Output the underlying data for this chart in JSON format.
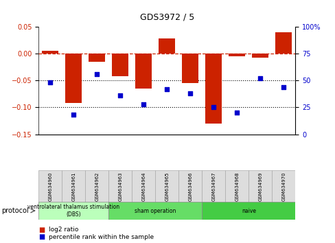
{
  "title": "GDS3972 / 5",
  "samples": [
    "GSM634960",
    "GSM634961",
    "GSM634962",
    "GSM634963",
    "GSM634964",
    "GSM634965",
    "GSM634966",
    "GSM634967",
    "GSM634968",
    "GSM634969",
    "GSM634970"
  ],
  "log2_ratio": [
    0.005,
    -0.092,
    -0.015,
    -0.042,
    -0.065,
    0.028,
    -0.055,
    -0.13,
    -0.005,
    -0.008,
    0.04
  ],
  "percentile_rank": [
    48,
    18,
    56,
    36,
    28,
    42,
    38,
    25,
    20,
    52,
    44
  ],
  "groups": [
    {
      "label": "ventrolateral thalamus stimulation\n(DBS)",
      "start": 0,
      "end": 2,
      "color": "#bbffbb"
    },
    {
      "label": "sham operation",
      "start": 3,
      "end": 6,
      "color": "#66dd66"
    },
    {
      "label": "naive",
      "start": 7,
      "end": 10,
      "color": "#44cc44"
    }
  ],
  "bar_color": "#cc2200",
  "dot_color": "#0000cc",
  "left_ylim": [
    -0.15,
    0.05
  ],
  "right_ylim": [
    0,
    100
  ],
  "left_yticks": [
    -0.15,
    -0.1,
    -0.05,
    0,
    0.05
  ],
  "right_yticks": [
    0,
    25,
    50,
    75,
    100
  ],
  "dotted_lines": [
    -0.05,
    -0.1
  ],
  "bar_width": 0.7
}
